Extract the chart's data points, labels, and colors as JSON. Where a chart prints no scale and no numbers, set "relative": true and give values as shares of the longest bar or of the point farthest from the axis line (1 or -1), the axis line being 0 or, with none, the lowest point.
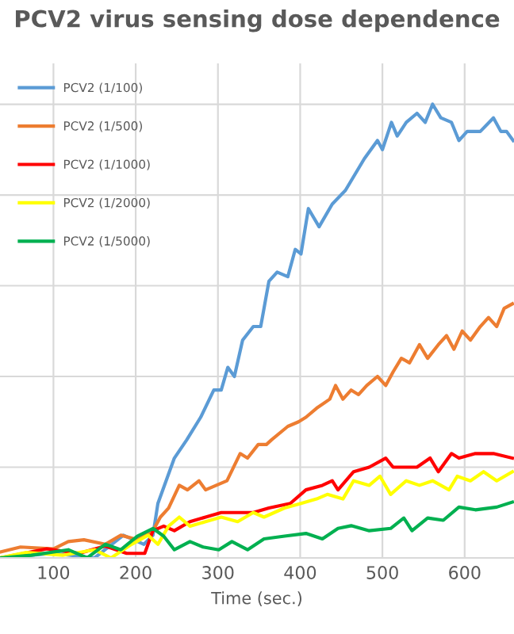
{
  "chart_data": {
    "type": "line",
    "title": "PCV2 virus sensing dose dependence",
    "xlabel": "Time (sec.)",
    "relative": true,
    "xlim": [
      35,
      660
    ],
    "xticks": [
      100,
      200,
      300,
      400,
      500,
      600
    ],
    "grid": true,
    "legend": "top left",
    "line_style": "solid",
    "marker": "none",
    "series": [
      {
        "name": "PCV2 (1/100)",
        "color": "#5b9bd5",
        "x": [
          35,
          100,
          150,
          185,
          210,
          221,
          227,
          247,
          262,
          279,
          295,
          304,
          312,
          320,
          330,
          343,
          352,
          362,
          372,
          385,
          394,
          401,
          410,
          423,
          439,
          455,
          478,
          494,
          500,
          511,
          518,
          529,
          542,
          552,
          561,
          571,
          584,
          593,
          603,
          619,
          635,
          644,
          651,
          659
        ],
        "values": [
          0.0,
          0.01,
          0.0,
          0.05,
          0.03,
          0.05,
          0.12,
          0.22,
          0.26,
          0.31,
          0.37,
          0.37,
          0.42,
          0.4,
          0.48,
          0.51,
          0.51,
          0.61,
          0.63,
          0.62,
          0.68,
          0.67,
          0.77,
          0.73,
          0.78,
          0.81,
          0.88,
          0.92,
          0.9,
          0.96,
          0.93,
          0.96,
          0.98,
          0.96,
          1.0,
          0.97,
          0.96,
          0.92,
          0.94,
          0.94,
          0.97,
          0.94,
          0.94,
          0.92
        ]
      },
      {
        "name": "PCV2 (1/500)",
        "color": "#ed7d31",
        "x": [
          35,
          60,
          100,
          118,
          137,
          163,
          182,
          202,
          221,
          230,
          240,
          253,
          263,
          277,
          285,
          298,
          311,
          327,
          336,
          349,
          359,
          365,
          385,
          398,
          407,
          420,
          436,
          443,
          452,
          462,
          471,
          481,
          494,
          504,
          513,
          523,
          533,
          545,
          555,
          568,
          578,
          587,
          597,
          607,
          619,
          629,
          639,
          648,
          658
        ],
        "values": [
          0.013,
          0.024,
          0.02,
          0.036,
          0.04,
          0.03,
          0.05,
          0.04,
          0.06,
          0.09,
          0.11,
          0.16,
          0.15,
          0.17,
          0.15,
          0.16,
          0.17,
          0.23,
          0.22,
          0.25,
          0.25,
          0.26,
          0.29,
          0.3,
          0.31,
          0.33,
          0.35,
          0.38,
          0.35,
          0.37,
          0.36,
          0.38,
          0.4,
          0.38,
          0.41,
          0.44,
          0.43,
          0.47,
          0.44,
          0.47,
          0.49,
          0.46,
          0.5,
          0.48,
          0.51,
          0.53,
          0.51,
          0.55,
          0.56
        ]
      },
      {
        "name": "PCV2 (1/1000)",
        "color": "#ff0000",
        "x": [
          35,
          92,
          131,
          163,
          189,
          211,
          221,
          234,
          247,
          266,
          285,
          304,
          324,
          343,
          362,
          388,
          407,
          427,
          439,
          446,
          465,
          484,
          504,
          513,
          523,
          542,
          558,
          568,
          584,
          593,
          613,
          635,
          658
        ],
        "values": [
          0.0,
          0.02,
          0.01,
          0.026,
          0.01,
          0.01,
          0.06,
          0.07,
          0.06,
          0.08,
          0.09,
          0.1,
          0.1,
          0.1,
          0.11,
          0.12,
          0.15,
          0.16,
          0.17,
          0.15,
          0.19,
          0.2,
          0.22,
          0.2,
          0.2,
          0.2,
          0.22,
          0.19,
          0.23,
          0.22,
          0.23,
          0.23,
          0.22
        ]
      },
      {
        "name": "PCV2 (1/2000)",
        "color": "#ffff00",
        "x": [
          35,
          67,
          112,
          150,
          170,
          195,
          215,
          227,
          240,
          253,
          266,
          285,
          304,
          324,
          343,
          356,
          381,
          401,
          420,
          433,
          452,
          465,
          484,
          497,
          510,
          529,
          545,
          561,
          581,
          591,
          607,
          623,
          639,
          658
        ],
        "values": [
          0.0,
          0.012,
          0.006,
          0.018,
          0.0,
          0.03,
          0.05,
          0.03,
          0.07,
          0.09,
          0.07,
          0.08,
          0.09,
          0.08,
          0.1,
          0.09,
          0.11,
          0.12,
          0.13,
          0.14,
          0.13,
          0.17,
          0.16,
          0.18,
          0.14,
          0.17,
          0.16,
          0.17,
          0.15,
          0.18,
          0.17,
          0.19,
          0.17,
          0.19
        ]
      },
      {
        "name": "PCV2 (1/5000)",
        "color": "#00b050",
        "x": [
          35,
          73,
          118,
          141,
          163,
          182,
          202,
          221,
          234,
          247,
          266,
          282,
          301,
          317,
          336,
          356,
          381,
          407,
          427,
          446,
          462,
          484,
          510,
          526,
          536,
          555,
          574,
          593,
          613,
          639,
          658
        ],
        "values": [
          0.0,
          0.006,
          0.018,
          0.0,
          0.03,
          0.018,
          0.048,
          0.065,
          0.048,
          0.018,
          0.036,
          0.024,
          0.018,
          0.036,
          0.018,
          0.042,
          0.048,
          0.054,
          0.042,
          0.065,
          0.071,
          0.06,
          0.065,
          0.088,
          0.06,
          0.088,
          0.083,
          0.112,
          0.106,
          0.112,
          0.123
        ]
      }
    ]
  }
}
